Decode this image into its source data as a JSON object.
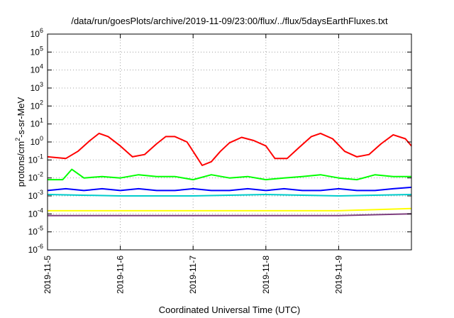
{
  "chart_data": {
    "type": "line",
    "title": "/data/run/goesPlots/archive/2019-11-09/23:00/flux/../flux/5daysEarthFluxes.txt",
    "xlabel": "Coordinated Universal Time (UTC)",
    "ylabel": {
      "text": "protons/cm",
      "sup": "2",
      "rest": "-s-sr-MeV"
    },
    "yscale": "log",
    "ylim": [
      1e-06,
      1000000.0
    ],
    "yticks": [
      {
        "base": "10",
        "exp": "6"
      },
      {
        "base": "10",
        "exp": "5"
      },
      {
        "base": "10",
        "exp": "4"
      },
      {
        "base": "10",
        "exp": "3"
      },
      {
        "base": "10",
        "exp": "2"
      },
      {
        "base": "10",
        "exp": "1"
      },
      {
        "base": "10",
        "exp": "0"
      },
      {
        "base": "10",
        "exp": "-1"
      },
      {
        "base": "10",
        "exp": "-2"
      },
      {
        "base": "10",
        "exp": "-3"
      },
      {
        "base": "10",
        "exp": "-4"
      },
      {
        "base": "10",
        "exp": "-5"
      },
      {
        "base": "10",
        "exp": "-6"
      }
    ],
    "xlim": [
      "2019-11-05",
      "2019-11-10"
    ],
    "xticks": [
      "2019-11-5",
      "2019-11-6",
      "2019-11-7",
      "2019-11-8",
      "2019-11-9"
    ],
    "grid": true,
    "legend": "none",
    "series": [
      {
        "color": "#ff0000",
        "x": [
          "2019-11-05T00:00",
          "2019-11-05T06:00",
          "2019-11-05T10:00",
          "2019-11-05T14:00",
          "2019-11-05T17:00",
          "2019-11-05T20:00",
          "2019-11-06T00:00",
          "2019-11-06T04:00",
          "2019-11-06T08:00",
          "2019-11-06T12:00",
          "2019-11-06T15:00",
          "2019-11-06T18:00",
          "2019-11-06T22:00",
          "2019-11-07T00:00",
          "2019-11-07T03:00",
          "2019-11-07T06:00",
          "2019-11-07T09:00",
          "2019-11-07T12:00",
          "2019-11-07T16:00",
          "2019-11-07T20:00",
          "2019-11-08T00:00",
          "2019-11-08T03:00",
          "2019-11-08T07:00",
          "2019-11-08T11:00",
          "2019-11-08T15:00",
          "2019-11-08T18:00",
          "2019-11-08T22:00",
          "2019-11-09T02:00",
          "2019-11-09T06:00",
          "2019-11-09T10:00",
          "2019-11-09T14:00",
          "2019-11-09T18:00",
          "2019-11-09T22:00",
          "2019-11-10T00:00"
        ],
        "y": [
          0.15,
          0.12,
          0.3,
          1.2,
          3.0,
          2.0,
          0.6,
          0.15,
          0.2,
          0.8,
          2.0,
          2.0,
          1.0,
          0.3,
          0.05,
          0.08,
          0.3,
          0.9,
          1.8,
          1.2,
          0.6,
          0.12,
          0.12,
          0.5,
          2.0,
          3.0,
          1.5,
          0.3,
          0.15,
          0.2,
          0.8,
          2.5,
          1.5,
          0.6
        ]
      },
      {
        "color": "#00ff00",
        "x": [
          "2019-11-05T00:00",
          "2019-11-05T05:00",
          "2019-11-05T08:00",
          "2019-11-05T12:00",
          "2019-11-05T18:00",
          "2019-11-06T00:00",
          "2019-11-06T06:00",
          "2019-11-06T12:00",
          "2019-11-06T18:00",
          "2019-11-07T00:00",
          "2019-11-07T06:00",
          "2019-11-07T12:00",
          "2019-11-07T18:00",
          "2019-11-08T00:00",
          "2019-11-08T06:00",
          "2019-11-08T12:00",
          "2019-11-08T18:00",
          "2019-11-09T00:00",
          "2019-11-09T06:00",
          "2019-11-09T12:00",
          "2019-11-09T18:00",
          "2019-11-10T00:00"
        ],
        "y": [
          0.008,
          0.008,
          0.03,
          0.01,
          0.012,
          0.01,
          0.015,
          0.012,
          0.012,
          0.008,
          0.015,
          0.01,
          0.012,
          0.008,
          0.01,
          0.012,
          0.015,
          0.01,
          0.008,
          0.015,
          0.012,
          0.012
        ]
      },
      {
        "color": "#0000ff",
        "x": [
          "2019-11-05T00:00",
          "2019-11-05T06:00",
          "2019-11-05T12:00",
          "2019-11-05T18:00",
          "2019-11-06T00:00",
          "2019-11-06T06:00",
          "2019-11-06T12:00",
          "2019-11-06T18:00",
          "2019-11-07T00:00",
          "2019-11-07T06:00",
          "2019-11-07T12:00",
          "2019-11-07T18:00",
          "2019-11-08T00:00",
          "2019-11-08T06:00",
          "2019-11-08T12:00",
          "2019-11-08T18:00",
          "2019-11-09T00:00",
          "2019-11-09T06:00",
          "2019-11-09T12:00",
          "2019-11-09T18:00",
          "2019-11-10T00:00"
        ],
        "y": [
          0.002,
          0.0025,
          0.002,
          0.0025,
          0.002,
          0.0025,
          0.002,
          0.002,
          0.0025,
          0.002,
          0.002,
          0.0025,
          0.002,
          0.0025,
          0.002,
          0.002,
          0.0025,
          0.002,
          0.002,
          0.0025,
          0.003
        ]
      },
      {
        "color": "#00cccc",
        "x": [
          "2019-11-05T00:00",
          "2019-11-06T00:00",
          "2019-11-07T00:00",
          "2019-11-08T00:00",
          "2019-11-09T00:00",
          "2019-11-10T00:00"
        ],
        "y": [
          0.0012,
          0.001,
          0.001,
          0.0012,
          0.001,
          0.0012
        ]
      },
      {
        "color": "#ffff00",
        "x": [
          "2019-11-05T00:00",
          "2019-11-06T00:00",
          "2019-11-07T00:00",
          "2019-11-08T00:00",
          "2019-11-09T00:00",
          "2019-11-10T00:00"
        ],
        "y": [
          0.00015,
          0.00015,
          0.00015,
          0.00015,
          0.00015,
          0.0002
        ]
      },
      {
        "color": "#7f3f7f",
        "x": [
          "2019-11-05T00:00",
          "2019-11-06T00:00",
          "2019-11-07T00:00",
          "2019-11-08T00:00",
          "2019-11-09T00:00",
          "2019-11-10T00:00"
        ],
        "y": [
          8e-05,
          8e-05,
          8e-05,
          8e-05,
          8e-05,
          0.0001
        ]
      }
    ]
  },
  "colors": {
    "axis": "#000000",
    "grid": "#a0a0a0",
    "background": "#ffffff"
  }
}
